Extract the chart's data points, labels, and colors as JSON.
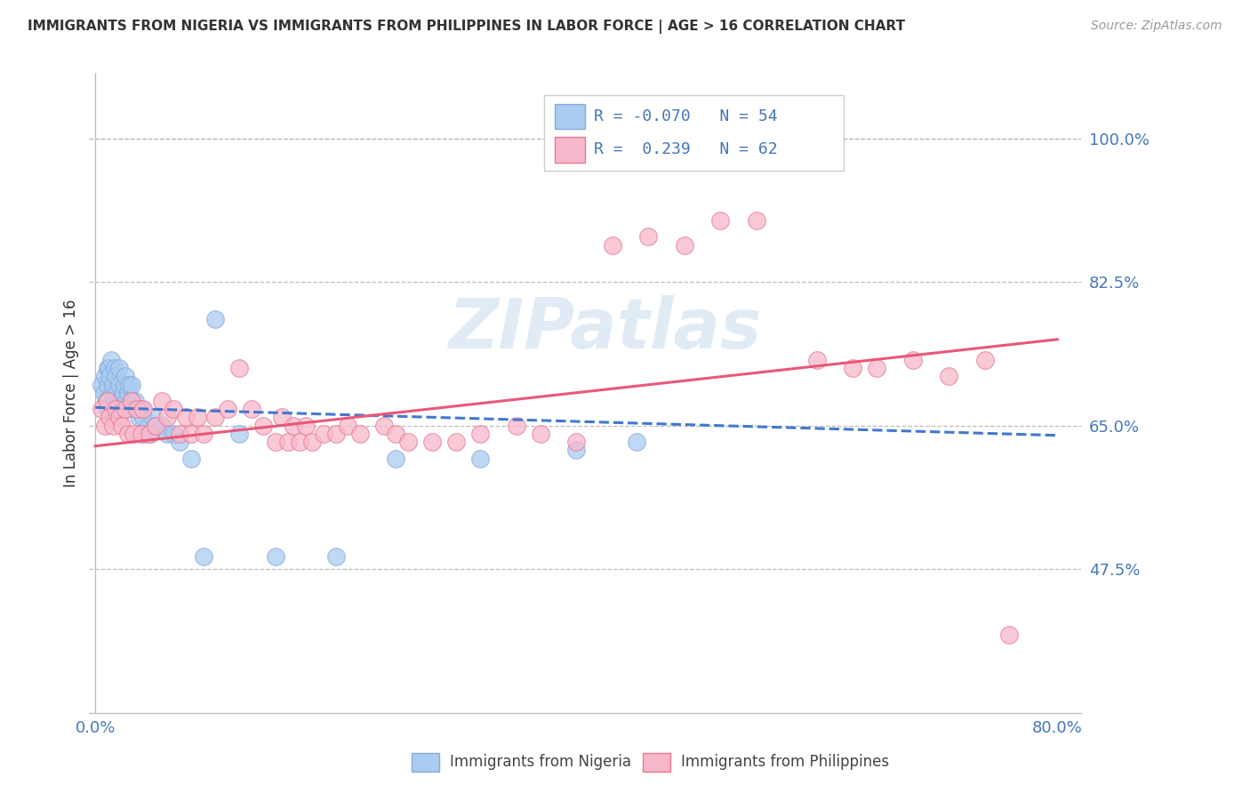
{
  "title": "IMMIGRANTS FROM NIGERIA VS IMMIGRANTS FROM PHILIPPINES IN LABOR FORCE | AGE > 16 CORRELATION CHART",
  "source": "Source: ZipAtlas.com",
  "ylabel": "In Labor Force | Age > 16",
  "xlim": [
    0.0,
    0.8
  ],
  "ylim": [
    0.3,
    1.08
  ],
  "xtick_pos": [
    0.0,
    0.1,
    0.2,
    0.3,
    0.4,
    0.5,
    0.6,
    0.7,
    0.8
  ],
  "xticklabels": [
    "0.0%",
    "",
    "",
    "",
    "",
    "",
    "",
    "",
    "80.0%"
  ],
  "ytick_positions": [
    0.475,
    0.65,
    0.825,
    1.0
  ],
  "ytick_labels": [
    "47.5%",
    "65.0%",
    "82.5%",
    "100.0%"
  ],
  "nigeria_color": "#aaccf0",
  "nigeria_edge": "#88aadd",
  "philippines_color": "#f8b8cc",
  "philippines_edge": "#e87890",
  "nigeria_R": -0.07,
  "nigeria_N": 54,
  "philippines_R": 0.239,
  "philippines_N": 62,
  "nigeria_line_color": "#4477cc",
  "philippines_line_color": "#e85878",
  "watermark": "ZIPatlas",
  "nigeria_line_x0": 0.0,
  "nigeria_line_y0": 0.672,
  "nigeria_line_x1": 0.8,
  "nigeria_line_y1": 0.638,
  "philippines_line_x0": 0.0,
  "philippines_line_y0": 0.625,
  "philippines_line_x1": 0.8,
  "philippines_line_y1": 0.755,
  "nigeria_x": [
    0.005,
    0.007,
    0.008,
    0.009,
    0.01,
    0.01,
    0.01,
    0.011,
    0.012,
    0.013,
    0.014,
    0.015,
    0.015,
    0.016,
    0.017,
    0.018,
    0.019,
    0.02,
    0.02,
    0.021,
    0.022,
    0.023,
    0.024,
    0.025,
    0.026,
    0.027,
    0.028,
    0.03,
    0.03,
    0.032,
    0.033,
    0.035,
    0.036,
    0.038,
    0.04,
    0.042,
    0.044,
    0.046,
    0.048,
    0.05,
    0.055,
    0.06,
    0.065,
    0.07,
    0.08,
    0.09,
    0.1,
    0.12,
    0.15,
    0.2,
    0.25,
    0.32,
    0.4,
    0.45
  ],
  "nigeria_y": [
    0.7,
    0.69,
    0.71,
    0.68,
    0.72,
    0.7,
    0.67,
    0.72,
    0.71,
    0.73,
    0.69,
    0.7,
    0.68,
    0.72,
    0.71,
    0.69,
    0.68,
    0.7,
    0.72,
    0.68,
    0.67,
    0.69,
    0.7,
    0.71,
    0.68,
    0.69,
    0.7,
    0.68,
    0.7,
    0.67,
    0.68,
    0.67,
    0.66,
    0.67,
    0.66,
    0.64,
    0.65,
    0.64,
    0.66,
    0.65,
    0.65,
    0.64,
    0.64,
    0.63,
    0.61,
    0.49,
    0.78,
    0.64,
    0.49,
    0.49,
    0.61,
    0.61,
    0.62,
    0.63
  ],
  "philippines_x": [
    0.005,
    0.008,
    0.01,
    0.012,
    0.015,
    0.017,
    0.02,
    0.022,
    0.025,
    0.027,
    0.03,
    0.032,
    0.035,
    0.038,
    0.04,
    0.045,
    0.05,
    0.055,
    0.06,
    0.065,
    0.07,
    0.075,
    0.08,
    0.085,
    0.09,
    0.1,
    0.11,
    0.12,
    0.13,
    0.14,
    0.15,
    0.155,
    0.16,
    0.165,
    0.17,
    0.175,
    0.18,
    0.19,
    0.2,
    0.21,
    0.22,
    0.24,
    0.25,
    0.26,
    0.28,
    0.3,
    0.32,
    0.35,
    0.37,
    0.4,
    0.43,
    0.46,
    0.49,
    0.52,
    0.55,
    0.6,
    0.63,
    0.65,
    0.68,
    0.71,
    0.74,
    0.76
  ],
  "philippines_y": [
    0.67,
    0.65,
    0.68,
    0.66,
    0.65,
    0.67,
    0.66,
    0.65,
    0.67,
    0.64,
    0.68,
    0.64,
    0.67,
    0.64,
    0.67,
    0.64,
    0.65,
    0.68,
    0.66,
    0.67,
    0.64,
    0.66,
    0.64,
    0.66,
    0.64,
    0.66,
    0.67,
    0.72,
    0.67,
    0.65,
    0.63,
    0.66,
    0.63,
    0.65,
    0.63,
    0.65,
    0.63,
    0.64,
    0.64,
    0.65,
    0.64,
    0.65,
    0.64,
    0.63,
    0.63,
    0.63,
    0.64,
    0.65,
    0.64,
    0.63,
    0.87,
    0.88,
    0.87,
    0.9,
    0.9,
    0.73,
    0.72,
    0.72,
    0.73,
    0.71,
    0.73,
    0.395
  ]
}
